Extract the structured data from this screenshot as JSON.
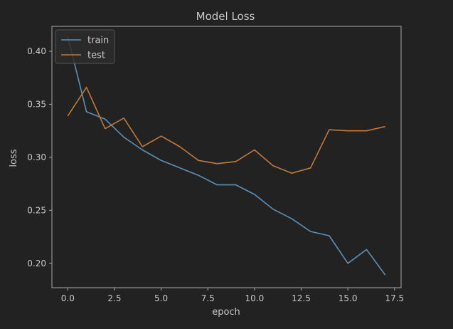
{
  "colors": {
    "background": "#222222",
    "axes_face": "#222222",
    "spine": "#a8a8a8",
    "text": "#c8c8c8",
    "legend_bg": "#2b2b2b",
    "legend_edge": "#555555"
  },
  "chart_data": {
    "type": "line",
    "title": "Model Loss",
    "xlabel": "epoch",
    "ylabel": "loss",
    "xlim": [
      -0.85,
      17.85
    ],
    "ylim": [
      0.177,
      0.4235
    ],
    "grid": false,
    "legend_position": "upper-left",
    "x": [
      0,
      1,
      2,
      3,
      4,
      5,
      6,
      7,
      8,
      9,
      10,
      11,
      12,
      13,
      14,
      15,
      16,
      17
    ],
    "x_ticks": [
      0,
      2.5,
      5,
      7.5,
      10,
      12.5,
      15,
      17.5
    ],
    "x_tick_labels": [
      "0.0",
      "2.5",
      "5.0",
      "7.5",
      "10.0",
      "12.5",
      "15.0",
      "17.5"
    ],
    "y_ticks": [
      0.2,
      0.25,
      0.3,
      0.35,
      0.4
    ],
    "y_tick_labels": [
      "0.20",
      "0.25",
      "0.30",
      "0.35",
      "0.40"
    ],
    "series": [
      {
        "name": "train",
        "color": "#5e8fb5",
        "values": [
          0.414,
          0.343,
          0.336,
          0.319,
          0.307,
          0.297,
          0.29,
          0.283,
          0.274,
          0.274,
          0.265,
          0.251,
          0.242,
          0.23,
          0.226,
          0.2,
          0.213,
          0.189
        ]
      },
      {
        "name": "test",
        "color": "#c0793d",
        "values": [
          0.339,
          0.366,
          0.327,
          0.337,
          0.31,
          0.32,
          0.31,
          0.297,
          0.294,
          0.296,
          0.307,
          0.292,
          0.285,
          0.29,
          0.326,
          0.325,
          0.325,
          0.329
        ]
      }
    ]
  }
}
